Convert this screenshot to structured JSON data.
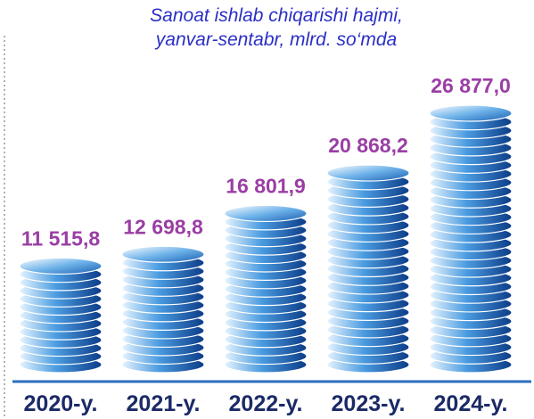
{
  "chart_data": {
    "type": "bar",
    "title": "Sanoat ishlab chiqarishi hajmi,",
    "subtitle": "yanvar-sentabr,  mlrd. so‘mda",
    "categories": [
      "2020-y.",
      "2021-y.",
      "2022-y.",
      "2023-y.",
      "2024-y."
    ],
    "values": [
      11515.8,
      12698.8,
      16801.9,
      20868.2,
      26877.0
    ],
    "value_labels": [
      "11 515,8",
      "12 698,8",
      "16 801,9",
      "20 868,2",
      "26 877,0"
    ],
    "color": "#1f6fc0"
  }
}
